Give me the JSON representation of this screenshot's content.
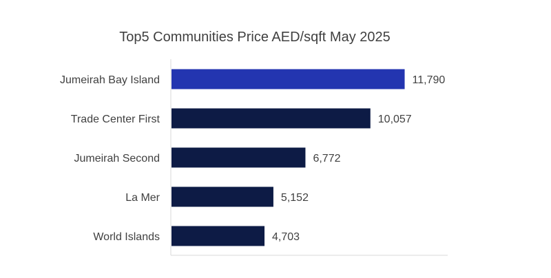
{
  "chart_data": {
    "type": "bar",
    "orientation": "horizontal",
    "title": "Top5 Communities Price AED/sqft May 2025",
    "xlabel": "",
    "ylabel": "",
    "categories": [
      "Jumeirah Bay Island",
      "Trade Center First",
      "Jumeirah Second",
      "La Mer",
      "World Islands"
    ],
    "values": [
      11790,
      10057,
      6772,
      5152,
      4703
    ],
    "value_labels": [
      "11,790",
      "10,057",
      "6,772",
      "5,152",
      "4,703"
    ],
    "xlim": [
      0,
      14000
    ],
    "grid": false,
    "legend": "none",
    "colors": {
      "highlight": "#2335b0",
      "bar": "#0d1b45",
      "axis": "#d9d9d9",
      "text": "#404040"
    },
    "highlight_index": 0
  }
}
